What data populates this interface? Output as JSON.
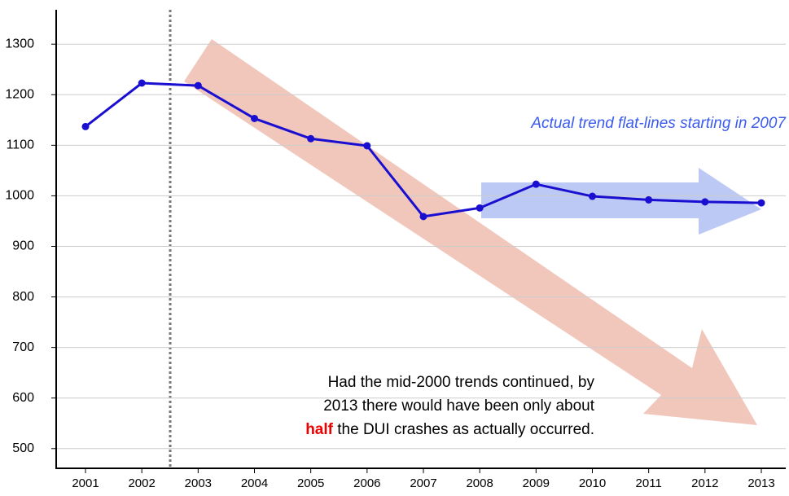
{
  "chart_data": {
    "type": "line",
    "categories": [
      "2001",
      "2002",
      "2003",
      "2004",
      "2005",
      "2006",
      "2007",
      "2008",
      "2009",
      "2010",
      "2011",
      "2012",
      "2013"
    ],
    "values": [
      1137,
      1223,
      1218,
      1153,
      1113,
      1099,
      959,
      976,
      1023,
      999,
      992,
      988,
      986
    ],
    "color": "#1a0fd0",
    "ylim": [
      461,
      1368
    ],
    "yticks": [
      500,
      600,
      700,
      800,
      900,
      1000,
      1100,
      1200,
      1300
    ],
    "grid": true,
    "trend_note": "Actual trend flat-lines starting in 2007",
    "note_lines": [
      "Had the mid-2000 trends continued, by",
      "2013 there would have been only about"
    ],
    "note_emphasis": "half",
    "note_rest": "the DUI crashes as actually occurred."
  }
}
